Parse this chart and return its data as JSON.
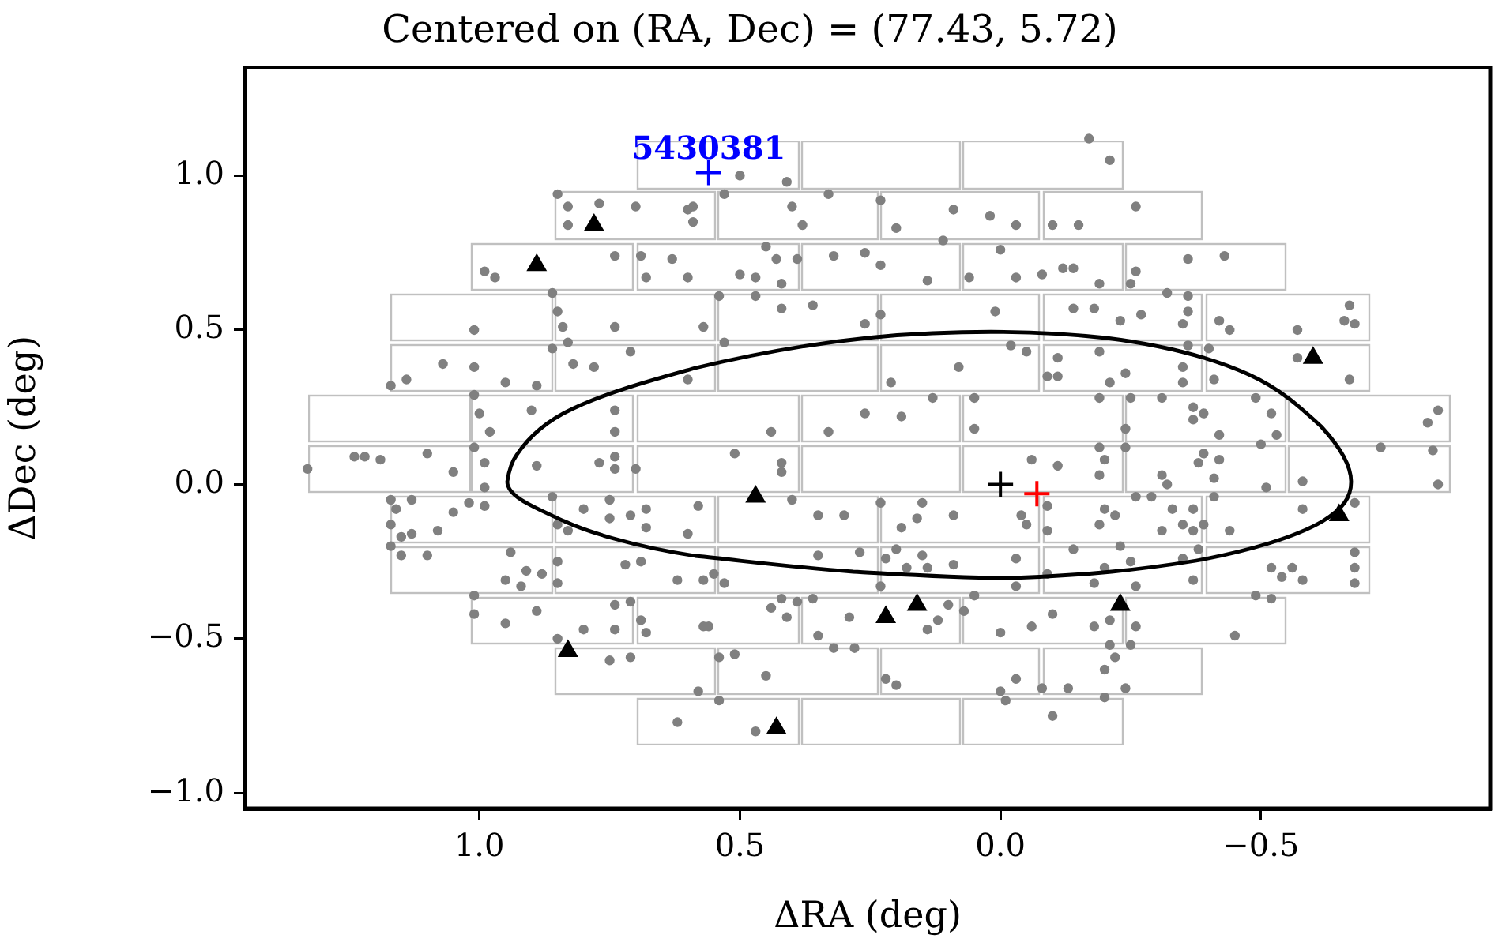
{
  "chart_data": {
    "type": "scatter",
    "title": "Centered on (RA, Dec) = (77.43, 5.72)",
    "xlabel": "ΔRA (deg)",
    "ylabel": "ΔDec (deg)",
    "xlim": [
      1.45,
      -0.94
    ],
    "ylim": [
      -1.05,
      1.35
    ],
    "xticks": [
      {
        "value": 1.0,
        "label": "1.0"
      },
      {
        "value": 0.5,
        "label": "0.5"
      },
      {
        "value": 0.0,
        "label": "0.0"
      },
      {
        "value": -0.5,
        "label": "−0.5"
      }
    ],
    "yticks": [
      {
        "value": -1.0,
        "label": "−1.0"
      },
      {
        "value": -0.5,
        "label": "−0.5"
      },
      {
        "value": 0.0,
        "label": "0.0"
      },
      {
        "value": 0.5,
        "label": "0.5"
      },
      {
        "value": 1.0,
        "label": "1.0"
      }
    ],
    "grid": false,
    "legend": false,
    "annotations": [
      {
        "text": "5430381",
        "x": 0.56,
        "y": 1.01
      }
    ],
    "series": [
      {
        "color": "#808080",
        "marker": "circle",
        "x": [
          0.85,
          0.83,
          0.77,
          0.83,
          0.7,
          0.6,
          0.59,
          0.99,
          0.97,
          0.74,
          0.69,
          0.63,
          0.68,
          0.6,
          0.86,
          0.85,
          0.84,
          0.74,
          1.01,
          1.07,
          1.01,
          1.17,
          1.14,
          0.95,
          0.89,
          0.86,
          0.83,
          0.78,
          0.71,
          0.82,
          0.6,
          1.01,
          1.0,
          0.9,
          0.74,
          0.74,
          0.98,
          1.24,
          1.22,
          1.19,
          1.1,
          1.33,
          1.05,
          1.01,
          0.99,
          0.89,
          0.77,
          0.74,
          0.74,
          0.7,
          0.99,
          -0.17,
          0.5,
          0.41,
          0.53,
          0.59,
          0.4,
          0.33,
          0.38,
          0.23,
          0.09,
          0.02,
          -0.03,
          0.2,
          -0.1,
          -0.15,
          0.45,
          0.43,
          0.39,
          0.32,
          0.26,
          0.23,
          0.11,
          0.0,
          0.5,
          0.47,
          0.42,
          0.14,
          0.06,
          -0.03,
          -0.08,
          -0.12,
          -0.14,
          0.54,
          0.47,
          0.42,
          0.36,
          0.26,
          0.23,
          0.01,
          -0.14,
          0.57,
          0.53,
          0.08,
          -0.02,
          -0.05,
          0.21,
          -0.11,
          -0.09,
          -0.11,
          0.13,
          0.05,
          0.05,
          0.26,
          0.19,
          0.33,
          0.44,
          0.51,
          0.42,
          0.42,
          -0.06,
          -0.11,
          -0.21,
          -0.26,
          -0.36,
          -0.43,
          -0.26,
          -0.25,
          -0.19,
          -0.32,
          -0.36,
          -0.18,
          -0.23,
          -0.27,
          -0.36,
          -0.35,
          -0.42,
          -0.44,
          -0.57,
          -0.67,
          -0.66,
          -0.68,
          -0.36,
          -0.4,
          -0.19,
          -0.57,
          -0.67,
          -0.24,
          -0.35,
          -0.21,
          -0.35,
          -0.41,
          -0.19,
          -0.25,
          -0.31,
          -0.37,
          -0.39,
          -0.37,
          -0.49,
          -0.52,
          -0.24,
          -0.42,
          -0.53,
          -0.84,
          -0.82,
          -0.24,
          -0.19,
          -0.2,
          -0.19,
          -0.38,
          -0.39,
          -0.42,
          -0.31,
          -0.41,
          -0.5,
          -0.51,
          -0.73,
          -0.83,
          -0.84,
          -0.58,
          1.17,
          1.13,
          1.16,
          1.05,
          1.02,
          0.99,
          1.17,
          1.15,
          1.13,
          1.08,
          1.17,
          1.15,
          1.1,
          0.94,
          0.91,
          0.88,
          0.95,
          0.92,
          1.01,
          1.01,
          0.95,
          0.89,
          0.85,
          0.8,
          0.74,
          0.74,
          0.71,
          0.69,
          0.68,
          0.86,
          0.8,
          0.85,
          0.83,
          0.75,
          0.75,
          0.71,
          0.68,
          0.68,
          0.6,
          0.58,
          0.85,
          0.85,
          0.72,
          0.69,
          0.62,
          0.75,
          0.71,
          0.58,
          0.62,
          0.57,
          0.4,
          0.3,
          0.23,
          0.15,
          0.09,
          0.16,
          0.19,
          -0.04,
          -0.05,
          -0.09,
          -0.09,
          -0.14,
          0.35,
          0.27,
          0.22,
          0.2,
          0.18,
          0.15,
          0.14,
          0.09,
          -0.03,
          -0.03,
          0.23,
          -0.09,
          0.57,
          0.53,
          0.55,
          0.42,
          0.39,
          0.36,
          0.44,
          0.41,
          0.29,
          0.35,
          0.12,
          0.14,
          0.1,
          0.05,
          0.07,
          0.0,
          -0.06,
          -0.1,
          0.56,
          0.32,
          0.28,
          0.45,
          0.51,
          0.54,
          0.54,
          0.22,
          0.2,
          0.0,
          -0.01,
          -0.03,
          -0.08,
          -0.13,
          -0.1,
          0.47,
          0.35,
          -0.19,
          -0.2,
          -0.22,
          -0.26,
          -0.29,
          -0.32,
          -0.33,
          -0.31,
          -0.35,
          -0.37,
          -0.37,
          -0.39,
          -0.44,
          -0.41,
          -0.58,
          -0.68,
          -0.23,
          -0.25,
          -0.2,
          -0.18,
          -0.26,
          -0.35,
          -0.38,
          -0.37,
          -0.52,
          -0.54,
          -0.56,
          -0.58,
          -0.68,
          -0.68,
          -0.68,
          -0.49,
          -0.52,
          -0.18,
          -0.21,
          -0.26,
          -0.45,
          -0.21,
          -0.25,
          -0.22,
          -0.2,
          -0.24,
          -0.2
        ],
        "values": [
          0.94,
          0.9,
          0.91,
          0.84,
          0.9,
          0.89,
          0.85,
          0.69,
          0.67,
          0.74,
          0.74,
          0.73,
          0.67,
          0.67,
          0.62,
          0.56,
          0.51,
          0.51,
          0.5,
          0.39,
          0.38,
          0.32,
          0.34,
          0.33,
          0.32,
          0.44,
          0.46,
          0.38,
          0.43,
          0.39,
          0.34,
          0.29,
          0.23,
          0.24,
          0.24,
          0.17,
          0.17,
          0.09,
          0.09,
          0.08,
          0.1,
          0.05,
          0.04,
          0.12,
          0.07,
          0.06,
          0.07,
          0.09,
          0.05,
          0.05,
          -0.01,
          1.12,
          1.0,
          0.98,
          0.94,
          0.9,
          0.9,
          0.94,
          0.84,
          0.92,
          0.89,
          0.87,
          0.84,
          0.83,
          0.84,
          0.84,
          0.77,
          0.73,
          0.73,
          0.74,
          0.75,
          0.71,
          0.79,
          0.76,
          0.68,
          0.67,
          0.65,
          0.66,
          0.67,
          0.67,
          0.68,
          0.7,
          0.7,
          0.61,
          0.61,
          0.57,
          0.58,
          0.52,
          0.55,
          0.56,
          0.57,
          0.51,
          0.46,
          0.38,
          0.45,
          0.43,
          0.33,
          0.41,
          0.35,
          0.35,
          0.28,
          0.28,
          0.18,
          0.23,
          0.22,
          0.17,
          0.17,
          0.1,
          0.07,
          0.04,
          0.08,
          0.06,
          1.05,
          0.9,
          0.73,
          0.74,
          0.69,
          0.65,
          0.65,
          0.62,
          0.61,
          0.57,
          0.53,
          0.55,
          0.56,
          0.52,
          0.53,
          0.5,
          0.5,
          0.58,
          0.53,
          0.52,
          0.45,
          0.44,
          0.43,
          0.41,
          0.34,
          0.36,
          0.38,
          0.33,
          0.33,
          0.34,
          0.28,
          0.28,
          0.28,
          0.25,
          0.23,
          0.21,
          0.28,
          0.23,
          0.18,
          0.16,
          0.16,
          0.24,
          0.2,
          0.12,
          0.12,
          0.08,
          0.03,
          0.07,
          0.1,
          0.08,
          0.03,
          0.02,
          0.13,
          -0.01,
          0.12,
          0.11,
          0.0,
          0.01,
          -0.05,
          -0.05,
          -0.08,
          -0.09,
          -0.06,
          -0.07,
          -0.13,
          -0.17,
          -0.16,
          -0.15,
          -0.2,
          -0.23,
          -0.23,
          -0.22,
          -0.28,
          -0.29,
          -0.31,
          -0.33,
          -0.36,
          -0.42,
          -0.45,
          -0.41,
          -0.5,
          -0.47,
          -0.39,
          -0.47,
          -0.38,
          -0.44,
          -0.48,
          -0.04,
          -0.08,
          -0.13,
          -0.15,
          -0.05,
          -0.11,
          -0.1,
          -0.08,
          -0.14,
          -0.16,
          -0.07,
          -0.25,
          -0.32,
          -0.26,
          -0.25,
          -0.31,
          -0.57,
          -0.56,
          -0.67,
          -0.77,
          -0.46,
          -0.05,
          -0.1,
          -0.06,
          -0.06,
          -0.1,
          -0.11,
          -0.14,
          -0.1,
          -0.13,
          -0.07,
          -0.15,
          -0.21,
          -0.23,
          -0.22,
          -0.24,
          -0.21,
          -0.27,
          -0.23,
          -0.27,
          -0.26,
          -0.24,
          -0.33,
          -0.33,
          -0.29,
          -0.31,
          -0.32,
          -0.29,
          -0.37,
          -0.38,
          -0.37,
          -0.4,
          -0.43,
          -0.43,
          -0.49,
          -0.44,
          -0.47,
          -0.39,
          -0.36,
          -0.41,
          -0.48,
          -0.46,
          -0.42,
          -0.46,
          -0.53,
          -0.53,
          -0.62,
          -0.55,
          -0.56,
          -0.7,
          -0.63,
          -0.65,
          -0.67,
          -0.7,
          -0.63,
          -0.66,
          -0.66,
          -0.75,
          -0.8,
          -0.1,
          -0.13,
          -0.08,
          -0.1,
          -0.04,
          -0.04,
          0.0,
          -0.08,
          -0.15,
          -0.13,
          -0.15,
          -0.08,
          -0.13,
          -0.15,
          -0.04,
          -0.08,
          -0.06,
          -0.2,
          -0.25,
          -0.27,
          -0.32,
          -0.33,
          -0.24,
          -0.21,
          -0.31,
          -0.27,
          -0.3,
          -0.27,
          -0.31,
          -0.22,
          -0.27,
          -0.32,
          -0.36,
          -0.37,
          -0.46,
          -0.44,
          -0.46,
          -0.49,
          -0.52,
          -0.52,
          -0.56,
          -0.6,
          -0.66,
          -0.69
        ]
      },
      {
        "color": "#000000",
        "marker": "triangle",
        "x": [
          0.78,
          0.89,
          -0.6,
          -0.65,
          0.47,
          0.22,
          0.16,
          -0.23,
          0.83,
          0.43
        ],
        "values": [
          0.84,
          0.71,
          0.41,
          -0.1,
          -0.04,
          -0.43,
          -0.39,
          -0.39,
          -0.54,
          -0.79
        ]
      },
      {
        "color": "#0000ff",
        "marker": "cross",
        "x": [
          0.56
        ],
        "values": [
          1.01
        ]
      },
      {
        "color": "#000000",
        "marker": "cross",
        "x": [
          0.0
        ],
        "values": [
          0.0
        ]
      },
      {
        "color": "#ff0000",
        "marker": "cross",
        "x": [
          -0.07
        ],
        "values": [
          -0.03
        ]
      }
    ]
  }
}
